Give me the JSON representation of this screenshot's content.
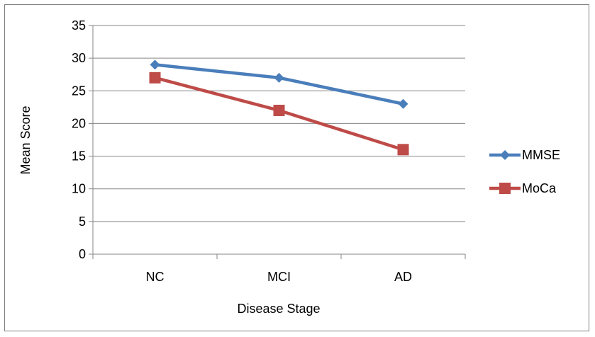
{
  "chart_data": {
    "type": "line",
    "categories": [
      "NC",
      "MCI",
      "AD"
    ],
    "series": [
      {
        "name": "MMSE",
        "values": [
          29,
          27,
          23
        ],
        "color": "#4a7ebb",
        "marker": "diamond"
      },
      {
        "name": "MoCa",
        "values": [
          27,
          22,
          16
        ],
        "color": "#be4b48",
        "marker": "square"
      }
    ],
    "xlabel": "Disease Stage",
    "ylabel": "Mean Score",
    "ylim": [
      0,
      35
    ],
    "yticks": [
      "0",
      "5",
      "10",
      "15",
      "20",
      "25",
      "30",
      "35"
    ],
    "grid": true,
    "legend": "right"
  }
}
